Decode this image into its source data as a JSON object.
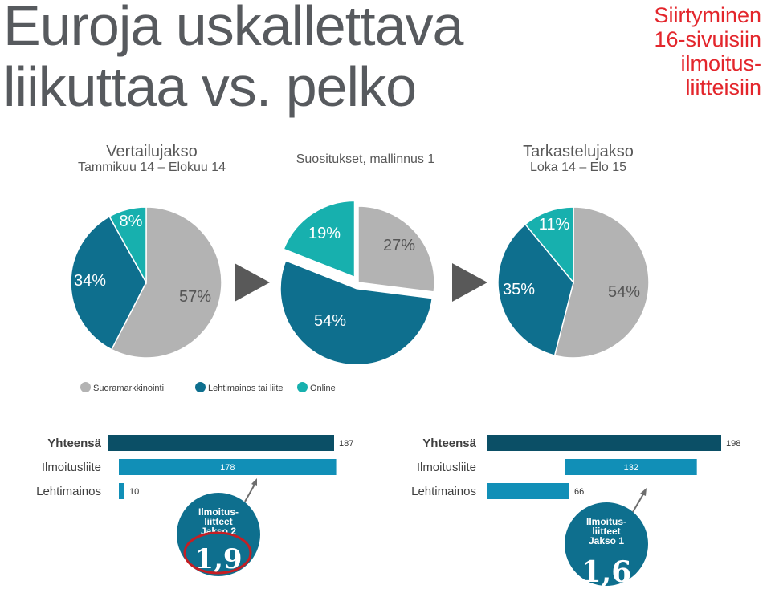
{
  "title_lines": [
    "Euroja uskallettava",
    "liikuttaa vs. pelko"
  ],
  "side_note_lines": [
    "Siirtyminen",
    "16-sivuisiin",
    "ilmoitus-",
    "liitteisiin"
  ],
  "periods": {
    "left": {
      "title": "Vertailujakso",
      "sub": "Tammikuu 14 – Elokuu 14"
    },
    "middle": {
      "title": "Suositukset, mallinnus 1"
    },
    "right": {
      "title": "Tarkastelujakso",
      "sub": "Loka 14 – Elo 15"
    }
  },
  "colors": {
    "suora": "#b3b3b3",
    "lehti": "#0e6f8e",
    "online": "#17b0ae",
    "total_bar": "#0b4f66",
    "lehti_bar": "#118fb7",
    "arrow": "#6e6e6e",
    "circle": "#c41e24"
  },
  "legend": [
    {
      "label": "Suoramarkkinointi",
      "color": "#b3b3b3"
    },
    {
      "label": "Lehtimainos tai liite",
      "color": "#0e6f8e"
    },
    {
      "label": "Online",
      "color": "#17b0ae"
    }
  ],
  "chart_data": [
    {
      "type": "pie",
      "categories": [
        "Suoramarkkinointi",
        "Lehtimainos tai liite",
        "Online"
      ],
      "values": [
        57,
        34,
        8
      ],
      "labels": [
        "57%",
        "34%",
        "8%"
      ]
    },
    {
      "type": "pie",
      "categories": [
        "Suoramarkkinointi",
        "Lehtimainos tai liite",
        "Online"
      ],
      "values": [
        27,
        54,
        19
      ],
      "labels": [
        "27%",
        "54%",
        "19%"
      ]
    },
    {
      "type": "pie",
      "categories": [
        "Suoramarkkinointi",
        "Lehtimainos tai liite",
        "Online"
      ],
      "values": [
        54,
        35,
        11
      ],
      "labels": [
        "54%",
        "35%",
        "11%"
      ]
    },
    {
      "type": "bar",
      "categories": [
        "Yhteensä",
        "Ilmoitusliite",
        "Lehtimainos"
      ],
      "values": [
        187,
        178,
        10
      ],
      "labels": [
        "187",
        "178",
        "10"
      ]
    },
    {
      "type": "bar",
      "categories": [
        "Yhteensä",
        "Ilmoitusliite",
        "Lehtimainos"
      ],
      "values": [
        198,
        132,
        66
      ],
      "labels": [
        "198",
        "132",
        "66"
      ]
    }
  ],
  "seals": [
    {
      "lines": [
        "Ilmoitus-",
        "liitteet",
        "Jakso 2"
      ],
      "value": "1,9"
    },
    {
      "lines": [
        "Ilmoitus-",
        "liitteet",
        "Jakso 1"
      ],
      "value": "1,6"
    }
  ]
}
